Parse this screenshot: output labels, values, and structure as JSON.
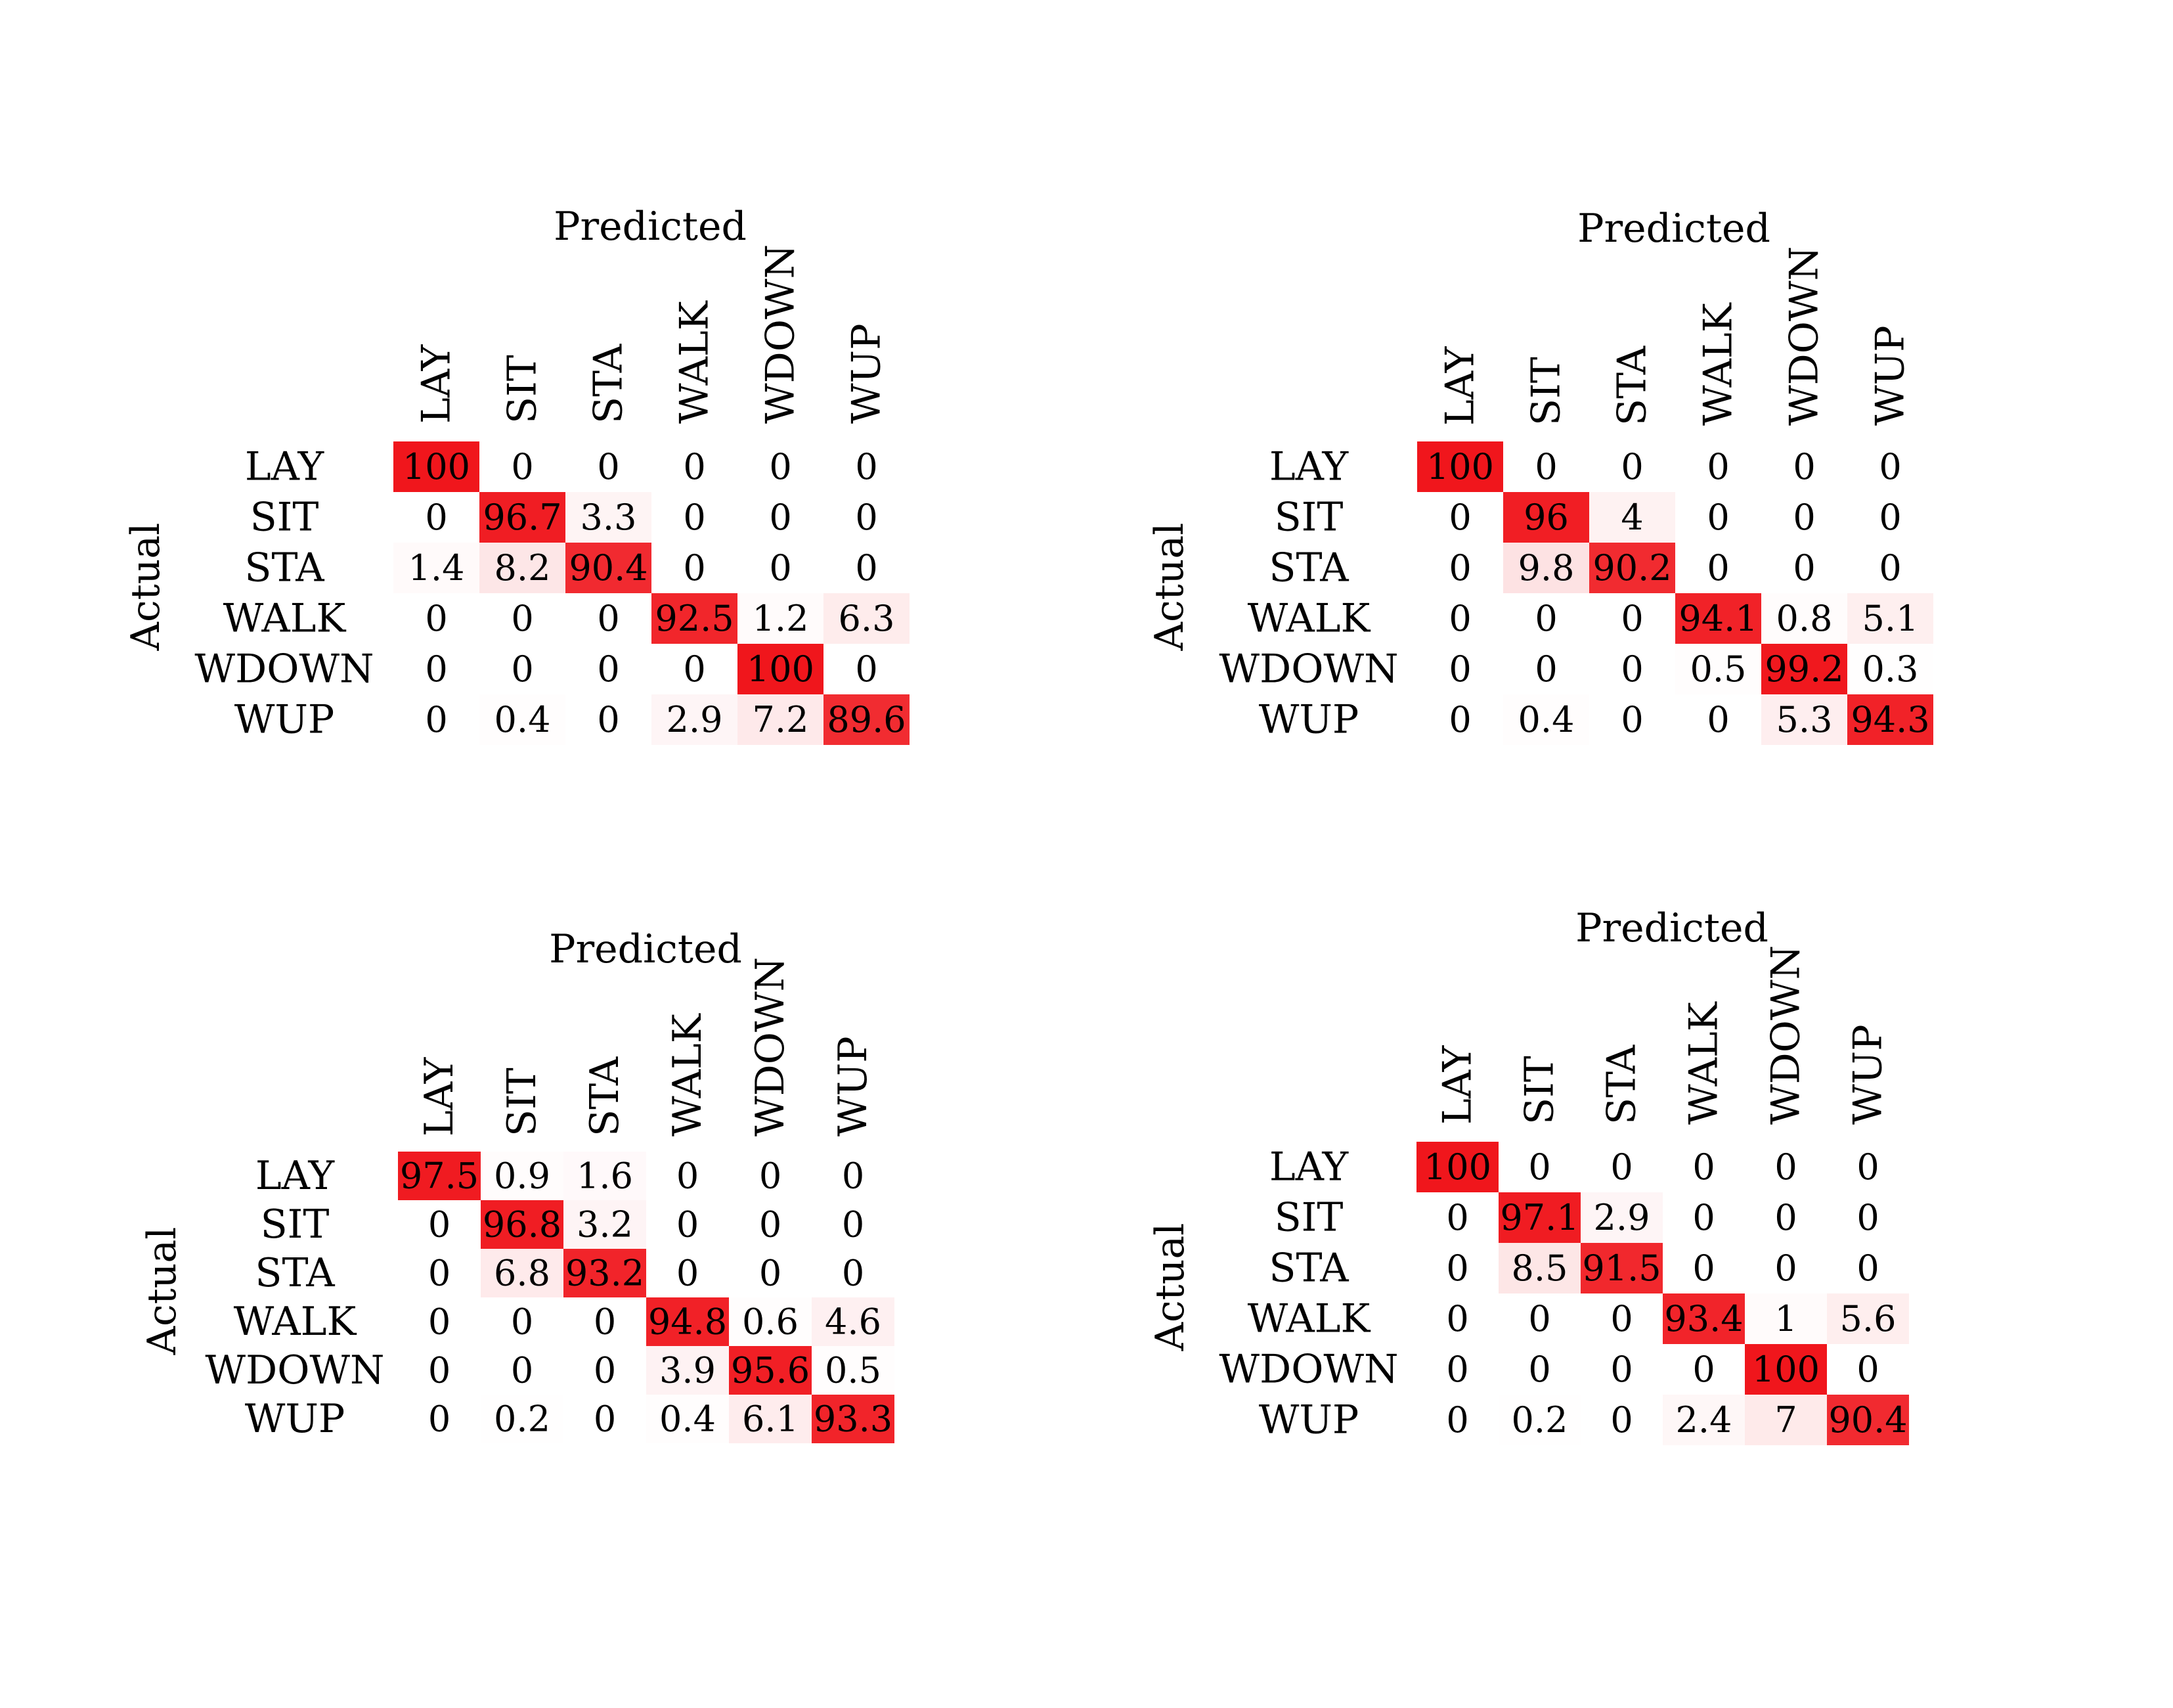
{
  "colors": {
    "background": "#ffffff",
    "high": "#f0161c",
    "low": "#ffffff",
    "text": "#000000"
  },
  "chart_data": [
    {
      "type": "heatmap",
      "title": "Predicted",
      "ylabel": "Actual",
      "columns": [
        "LAY",
        "SIT",
        "STA",
        "WALK",
        "WDOWN",
        "WUP"
      ],
      "rows": [
        "LAY",
        "SIT",
        "STA",
        "WALK",
        "WDOWN",
        "WUP"
      ],
      "values": [
        [
          100,
          0,
          0,
          0,
          0,
          0
        ],
        [
          0,
          96.7,
          3.3,
          0,
          0,
          0
        ],
        [
          1.4,
          8.2,
          90.4,
          0,
          0,
          0
        ],
        [
          0,
          0,
          0,
          92.5,
          1.2,
          6.3
        ],
        [
          0,
          0,
          0,
          0,
          100,
          0
        ],
        [
          0,
          0.4,
          0,
          2.9,
          7.2,
          89.6
        ]
      ],
      "range": [
        0,
        100
      ]
    },
    {
      "type": "heatmap",
      "title": "Predicted",
      "ylabel": "Actual",
      "columns": [
        "LAY",
        "SIT",
        "STA",
        "WALK",
        "WDOWN",
        "WUP"
      ],
      "rows": [
        "LAY",
        "SIT",
        "STA",
        "WALK",
        "WDOWN",
        "WUP"
      ],
      "values": [
        [
          100,
          0,
          0,
          0,
          0,
          0
        ],
        [
          0,
          96,
          4,
          0,
          0,
          0
        ],
        [
          0,
          9.8,
          90.2,
          0,
          0,
          0
        ],
        [
          0,
          0,
          0,
          94.1,
          0.8,
          5.1
        ],
        [
          0,
          0,
          0,
          0.5,
          99.2,
          0.3
        ],
        [
          0,
          0.4,
          0,
          0,
          5.3,
          94.3
        ]
      ],
      "range": [
        0,
        100
      ]
    },
    {
      "type": "heatmap",
      "title": "Predicted",
      "ylabel": "Actual",
      "columns": [
        "LAY",
        "SIT",
        "STA",
        "WALK",
        "WDOWN",
        "WUP"
      ],
      "rows": [
        "LAY",
        "SIT",
        "STA",
        "WALK",
        "WDOWN",
        "WUP"
      ],
      "values": [
        [
          97.5,
          0.9,
          1.6,
          0,
          0,
          0
        ],
        [
          0,
          96.8,
          3.2,
          0,
          0,
          0
        ],
        [
          0,
          6.8,
          93.2,
          0,
          0,
          0
        ],
        [
          0,
          0,
          0,
          94.8,
          0.6,
          4.6
        ],
        [
          0,
          0,
          0,
          3.9,
          95.6,
          0.5
        ],
        [
          0,
          0.2,
          0,
          0.4,
          6.1,
          93.3
        ]
      ],
      "range": [
        0,
        100
      ]
    },
    {
      "type": "heatmap",
      "title": "Predicted",
      "ylabel": "Actual",
      "columns": [
        "LAY",
        "SIT",
        "STA",
        "WALK",
        "WDOWN",
        "WUP"
      ],
      "rows": [
        "LAY",
        "SIT",
        "STA",
        "WALK",
        "WDOWN",
        "WUP"
      ],
      "values": [
        [
          100,
          0,
          0,
          0,
          0,
          0
        ],
        [
          0,
          97.1,
          2.9,
          0,
          0,
          0
        ],
        [
          0,
          8.5,
          91.5,
          0,
          0,
          0
        ],
        [
          0,
          0,
          0,
          93.4,
          1,
          5.6
        ],
        [
          0,
          0,
          0,
          0,
          100,
          0
        ],
        [
          0,
          0.2,
          0,
          2.4,
          7,
          90.4
        ]
      ],
      "range": [
        0,
        100
      ]
    }
  ]
}
